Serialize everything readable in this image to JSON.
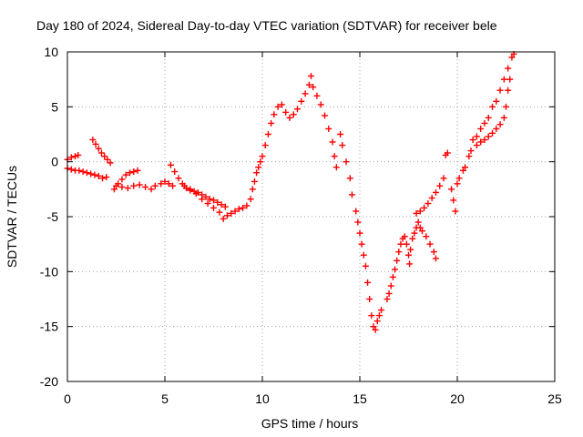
{
  "chart_data": {
    "type": "scatter",
    "title": "Day 180 of 2024, Sidereal Day-to-day VTEC variation (SDTVAR) for receiver bele",
    "xlabel": "GPS time / hours",
    "ylabel": "SDTVAR / TECUs",
    "xlim": [
      0,
      25
    ],
    "ylim": [
      -20,
      10
    ],
    "xticks": [
      0,
      5,
      10,
      15,
      20,
      25
    ],
    "yticks": [
      -20,
      -15,
      -10,
      -5,
      0,
      5,
      10
    ],
    "grid": true,
    "marker": "+",
    "marker_color": "#ff0000",
    "series": [
      {
        "name": "SDTVAR",
        "points": [
          [
            0.0,
            0.2
          ],
          [
            0.2,
            0.4
          ],
          [
            0.4,
            0.5
          ],
          [
            0.55,
            0.6
          ],
          [
            0.0,
            -0.6
          ],
          [
            0.2,
            -0.7
          ],
          [
            0.4,
            -0.8
          ],
          [
            0.6,
            -0.8
          ],
          [
            0.8,
            -0.9
          ],
          [
            1.0,
            -1.0
          ],
          [
            1.2,
            -1.1
          ],
          [
            1.4,
            -1.2
          ],
          [
            1.6,
            -1.3
          ],
          [
            1.8,
            -1.5
          ],
          [
            2.0,
            -1.4
          ],
          [
            1.3,
            2.0
          ],
          [
            1.45,
            1.6
          ],
          [
            1.6,
            1.2
          ],
          [
            1.75,
            0.8
          ],
          [
            1.9,
            0.5
          ],
          [
            2.05,
            0.2
          ],
          [
            2.2,
            -0.1
          ],
          [
            2.4,
            -2.5
          ],
          [
            2.6,
            -2.0
          ],
          [
            2.8,
            -1.6
          ],
          [
            3.0,
            -1.2
          ],
          [
            3.2,
            -1.0
          ],
          [
            3.4,
            -0.9
          ],
          [
            3.6,
            -0.8
          ],
          [
            2.5,
            -2.2
          ],
          [
            2.8,
            -2.3
          ],
          [
            3.1,
            -2.4
          ],
          [
            3.4,
            -2.2
          ],
          [
            3.7,
            -2.1
          ],
          [
            4.0,
            -2.3
          ],
          [
            4.3,
            -2.5
          ],
          [
            4.5,
            -2.2
          ],
          [
            4.8,
            -2.0
          ],
          [
            5.0,
            -1.8
          ],
          [
            5.2,
            -2.0
          ],
          [
            5.4,
            -2.2
          ],
          [
            5.3,
            -0.3
          ],
          [
            5.5,
            -0.9
          ],
          [
            5.7,
            -1.5
          ],
          [
            5.9,
            -2.0
          ],
          [
            6.1,
            -2.4
          ],
          [
            6.3,
            -2.6
          ],
          [
            6.5,
            -2.7
          ],
          [
            6.7,
            -2.8
          ],
          [
            6.9,
            -3.0
          ],
          [
            7.1,
            -3.2
          ],
          [
            7.3,
            -3.4
          ],
          [
            7.5,
            -3.5
          ],
          [
            7.7,
            -3.7
          ],
          [
            7.9,
            -3.9
          ],
          [
            8.1,
            -4.1
          ],
          [
            6.0,
            -2.2
          ],
          [
            6.3,
            -2.5
          ],
          [
            6.6,
            -2.9
          ],
          [
            6.9,
            -3.4
          ],
          [
            7.2,
            -3.8
          ],
          [
            7.5,
            -4.2
          ],
          [
            7.8,
            -4.6
          ],
          [
            8.0,
            -5.2
          ],
          [
            8.2,
            -4.9
          ],
          [
            8.4,
            -4.7
          ],
          [
            8.6,
            -4.5
          ],
          [
            8.8,
            -4.3
          ],
          [
            9.0,
            -4.2
          ],
          [
            9.2,
            -4.0
          ],
          [
            9.4,
            -3.4
          ],
          [
            9.5,
            -2.5
          ],
          [
            9.6,
            -1.8
          ],
          [
            9.7,
            -1.0
          ],
          [
            9.8,
            -0.5
          ],
          [
            9.9,
            0.0
          ],
          [
            10.0,
            0.5
          ],
          [
            10.15,
            1.5
          ],
          [
            10.3,
            2.5
          ],
          [
            10.45,
            3.5
          ],
          [
            10.6,
            4.3
          ],
          [
            10.8,
            5.0
          ],
          [
            11.0,
            5.2
          ],
          [
            11.2,
            4.5
          ],
          [
            11.4,
            4.0
          ],
          [
            11.6,
            4.3
          ],
          [
            11.8,
            4.8
          ],
          [
            12.0,
            5.5
          ],
          [
            12.2,
            6.2
          ],
          [
            12.4,
            7.0
          ],
          [
            12.5,
            7.8
          ],
          [
            12.6,
            6.8
          ],
          [
            12.8,
            6.0
          ],
          [
            13.0,
            5.2
          ],
          [
            13.2,
            4.2
          ],
          [
            13.4,
            3.0
          ],
          [
            13.6,
            1.8
          ],
          [
            13.7,
            0.5
          ],
          [
            13.8,
            -0.5
          ],
          [
            14.0,
            2.5
          ],
          [
            14.1,
            1.5
          ],
          [
            14.3,
            0.0
          ],
          [
            14.5,
            -1.5
          ],
          [
            14.6,
            -3.0
          ],
          [
            14.8,
            -4.5
          ],
          [
            14.9,
            -5.5
          ],
          [
            15.0,
            -6.5
          ],
          [
            15.1,
            -7.5
          ],
          [
            15.2,
            -8.5
          ],
          [
            15.3,
            -9.5
          ],
          [
            15.4,
            -11.0
          ],
          [
            15.5,
            -12.5
          ],
          [
            15.6,
            -14.0
          ],
          [
            15.7,
            -15.0
          ],
          [
            15.8,
            -15.3
          ],
          [
            15.9,
            -14.5
          ],
          [
            16.0,
            -14.0
          ],
          [
            16.1,
            -13.5
          ],
          [
            16.4,
            -12.5
          ],
          [
            16.5,
            -12.0
          ],
          [
            16.6,
            -11.3
          ],
          [
            16.7,
            -10.5
          ],
          [
            16.8,
            -9.8
          ],
          [
            16.9,
            -9.0
          ],
          [
            17.0,
            -8.2
          ],
          [
            17.1,
            -7.5
          ],
          [
            17.2,
            -7.0
          ],
          [
            17.3,
            -6.8
          ],
          [
            17.4,
            -7.5
          ],
          [
            17.5,
            -8.5
          ],
          [
            17.55,
            -9.3
          ],
          [
            17.6,
            -8.0
          ],
          [
            17.7,
            -7.0
          ],
          [
            17.8,
            -6.5
          ],
          [
            17.9,
            -6.0
          ],
          [
            18.0,
            -5.5
          ],
          [
            18.1,
            -6.0
          ],
          [
            18.2,
            -6.3
          ],
          [
            18.4,
            -6.8
          ],
          [
            18.6,
            -7.5
          ],
          [
            18.8,
            -8.2
          ],
          [
            18.9,
            -8.8
          ],
          [
            17.9,
            -4.7
          ],
          [
            18.1,
            -4.5
          ],
          [
            18.3,
            -4.2
          ],
          [
            18.5,
            -3.8
          ],
          [
            18.7,
            -3.3
          ],
          [
            18.9,
            -2.8
          ],
          [
            19.1,
            -2.2
          ],
          [
            19.3,
            -1.5
          ],
          [
            19.4,
            0.6
          ],
          [
            19.5,
            0.8
          ],
          [
            19.7,
            -2.5
          ],
          [
            19.8,
            -3.5
          ],
          [
            19.9,
            -4.5
          ],
          [
            20.0,
            -2.0
          ],
          [
            20.1,
            -1.5
          ],
          [
            20.3,
            -0.8
          ],
          [
            20.4,
            -0.5
          ],
          [
            20.6,
            0.5
          ],
          [
            20.7,
            1.0
          ],
          [
            20.8,
            2.0
          ],
          [
            21.0,
            2.3
          ],
          [
            21.2,
            3.0
          ],
          [
            21.4,
            3.5
          ],
          [
            21.6,
            4.0
          ],
          [
            21.8,
            5.0
          ],
          [
            22.0,
            5.5
          ],
          [
            22.2,
            6.5
          ],
          [
            22.4,
            7.5
          ],
          [
            22.6,
            8.5
          ],
          [
            22.8,
            9.5
          ],
          [
            22.9,
            9.8
          ],
          [
            21.0,
            1.5
          ],
          [
            21.2,
            1.8
          ],
          [
            21.4,
            2.0
          ],
          [
            21.6,
            2.3
          ],
          [
            21.8,
            2.6
          ],
          [
            22.0,
            3.0
          ],
          [
            22.2,
            3.4
          ],
          [
            22.4,
            4.0
          ],
          [
            22.5,
            5.0
          ],
          [
            22.6,
            6.5
          ],
          [
            22.7,
            7.5
          ]
        ]
      }
    ]
  }
}
